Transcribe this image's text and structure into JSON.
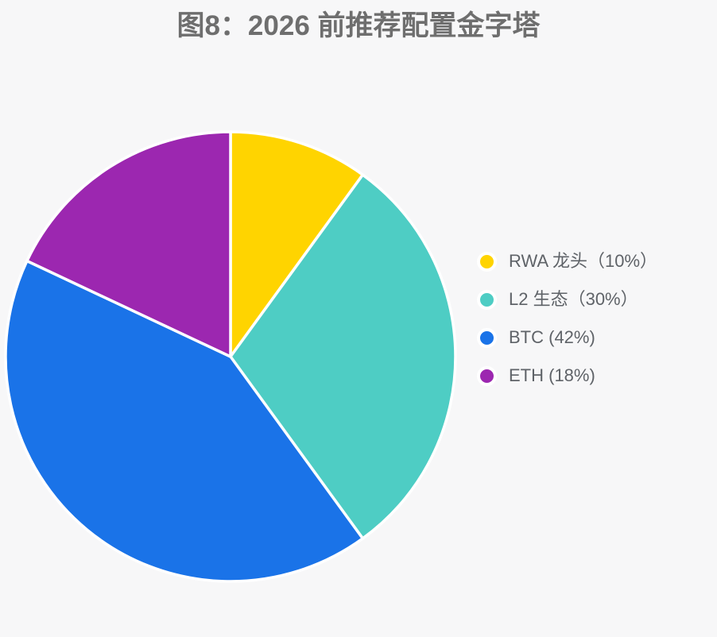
{
  "title": "图8：2026 前推荐配置金字塔",
  "chart_data": {
    "type": "pie",
    "labels": [
      "RWA 龙头",
      "L2 生态",
      "BTC",
      "ETH"
    ],
    "values": [
      10,
      30,
      42,
      18
    ],
    "unit": "%",
    "colors": [
      "#FFD400",
      "#4ECDC4",
      "#1A73E8",
      "#9C27B0"
    ],
    "slice_border_color": "#ffffff",
    "start_angle_deg": -90,
    "direction": "clockwise",
    "legend_position": "right",
    "legend_labels": [
      "RWA 龙头（10%）",
      "L2 生态（30%）",
      "BTC (42%)",
      "ETH (18%)"
    ]
  },
  "colors": {
    "background": "#f7f7f8",
    "title_text": "#6e6e6e",
    "legend_text": "#5f6368"
  }
}
